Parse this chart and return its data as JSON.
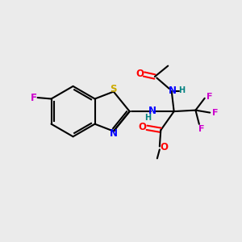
{
  "background_color": "#ebebeb",
  "bond_color": "#000000",
  "atom_colors": {
    "F": "#cc00cc",
    "S": "#ccaa00",
    "N": "#0000ff",
    "O": "#ff0000",
    "H": "#008080",
    "C": "#000000"
  },
  "figsize": [
    3.0,
    3.0
  ],
  "dpi": 100
}
